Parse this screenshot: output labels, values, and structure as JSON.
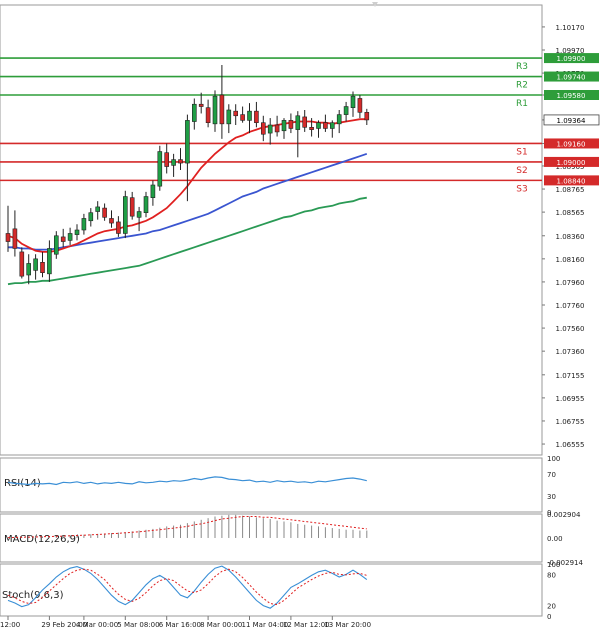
{
  "chart_data": {
    "type": "candlestick",
    "instrument_note": "",
    "price_axis": {
      "ylim": [
        1.0646,
        1.1036
      ],
      "ticks": [
        "1.10170",
        "1.09970",
        "1.09770",
        "1.09580",
        "1.09364",
        "1.09160",
        "1.08965",
        "1.08765",
        "1.08565",
        "1.08360",
        "1.08160",
        "1.07960",
        "1.07760",
        "1.07560",
        "1.07360",
        "1.07155",
        "1.06955",
        "1.06755",
        "1.06555"
      ]
    },
    "x_axis": {
      "labels": [
        "12:00",
        "29 Feb 20:00",
        "4 Mar 00:00",
        "5 Mar 08:00",
        "6 Mar 16:00",
        "8 Mar 00:00",
        "11 Mar 04:00",
        "12 Mar 12:00",
        "13 Mar 20:00"
      ],
      "label_positions_index": [
        0,
        6,
        11,
        17,
        23,
        29,
        35,
        41,
        47
      ]
    },
    "levels": [
      {
        "name": "R3",
        "value": 1.099,
        "label": "1.09900",
        "color": "#2e9d3a"
      },
      {
        "name": "R2",
        "value": 1.0974,
        "label": "1.09740",
        "color": "#2e9d3a"
      },
      {
        "name": "R1",
        "value": 1.0958,
        "label": "1.09580",
        "color": "#2e9d3a"
      },
      {
        "name": "S1",
        "value": 1.0916,
        "label": "1.09160",
        "color": "#d42a2a"
      },
      {
        "name": "S2",
        "value": 1.09,
        "label": "1.09000",
        "color": "#d42a2a"
      },
      {
        "name": "S3",
        "value": 1.0884,
        "label": "1.08840",
        "color": "#d42a2a"
      }
    ],
    "current_price": {
      "value": 1.09364,
      "label": "1.09364"
    },
    "candles": [
      {
        "o": 1.0838,
        "h": 1.0862,
        "l": 1.0822,
        "c": 1.0831
      },
      {
        "o": 1.0842,
        "h": 1.0858,
        "l": 1.0818,
        "c": 1.0825
      },
      {
        "o": 1.0822,
        "h": 1.0826,
        "l": 1.0799,
        "c": 1.0801
      },
      {
        "o": 1.0802,
        "h": 1.082,
        "l": 1.0794,
        "c": 1.0812
      },
      {
        "o": 1.0806,
        "h": 1.082,
        "l": 1.0798,
        "c": 1.0816
      },
      {
        "o": 1.0813,
        "h": 1.0822,
        "l": 1.08,
        "c": 1.0804
      },
      {
        "o": 1.0803,
        "h": 1.0832,
        "l": 1.0796,
        "c": 1.0825
      },
      {
        "o": 1.082,
        "h": 1.084,
        "l": 1.0816,
        "c": 1.0836
      },
      {
        "o": 1.0835,
        "h": 1.0842,
        "l": 1.0826,
        "c": 1.0831
      },
      {
        "o": 1.0832,
        "h": 1.0843,
        "l": 1.0828,
        "c": 1.0838
      },
      {
        "o": 1.0837,
        "h": 1.0846,
        "l": 1.0832,
        "c": 1.0841
      },
      {
        "o": 1.0841,
        "h": 1.0855,
        "l": 1.0837,
        "c": 1.0851
      },
      {
        "o": 1.0849,
        "h": 1.086,
        "l": 1.0844,
        "c": 1.0856
      },
      {
        "o": 1.0857,
        "h": 1.0866,
        "l": 1.085,
        "c": 1.0861
      },
      {
        "o": 1.086,
        "h": 1.0864,
        "l": 1.0849,
        "c": 1.0852
      },
      {
        "o": 1.0851,
        "h": 1.0858,
        "l": 1.0843,
        "c": 1.0847
      },
      {
        "o": 1.0848,
        "h": 1.0853,
        "l": 1.0835,
        "c": 1.0838
      },
      {
        "o": 1.0838,
        "h": 1.0875,
        "l": 1.0834,
        "c": 1.087
      },
      {
        "o": 1.0869,
        "h": 1.0874,
        "l": 1.085,
        "c": 1.0853
      },
      {
        "o": 1.0852,
        "h": 1.0861,
        "l": 1.084,
        "c": 1.0857
      },
      {
        "o": 1.0856,
        "h": 1.0874,
        "l": 1.0852,
        "c": 1.087
      },
      {
        "o": 1.0869,
        "h": 1.0884,
        "l": 1.0862,
        "c": 1.088
      },
      {
        "o": 1.0879,
        "h": 1.0914,
        "l": 1.0875,
        "c": 1.0909
      },
      {
        "o": 1.0908,
        "h": 1.0916,
        "l": 1.089,
        "c": 1.0896
      },
      {
        "o": 1.0897,
        "h": 1.0907,
        "l": 1.0887,
        "c": 1.0902
      },
      {
        "o": 1.0902,
        "h": 1.0912,
        "l": 1.0893,
        "c": 1.0899
      },
      {
        "o": 1.0899,
        "h": 1.0941,
        "l": 1.0866,
        "c": 1.0936
      },
      {
        "o": 1.0935,
        "h": 1.0955,
        "l": 1.0928,
        "c": 1.095
      },
      {
        "o": 1.095,
        "h": 1.096,
        "l": 1.0942,
        "c": 1.0948
      },
      {
        "o": 1.0947,
        "h": 1.0954,
        "l": 1.093,
        "c": 1.0934
      },
      {
        "o": 1.0933,
        "h": 1.0962,
        "l": 1.0926,
        "c": 1.0957
      },
      {
        "o": 1.0958,
        "h": 1.0984,
        "l": 1.092,
        "c": 1.0933
      },
      {
        "o": 1.0933,
        "h": 1.095,
        "l": 1.0925,
        "c": 1.0945
      },
      {
        "o": 1.0944,
        "h": 1.095,
        "l": 1.0932,
        "c": 1.094
      },
      {
        "o": 1.0941,
        "h": 1.0948,
        "l": 1.0934,
        "c": 1.0936
      },
      {
        "o": 1.0936,
        "h": 1.0951,
        "l": 1.0925,
        "c": 1.0944
      },
      {
        "o": 1.0944,
        "h": 1.0952,
        "l": 1.093,
        "c": 1.0934
      },
      {
        "o": 1.0934,
        "h": 1.094,
        "l": 1.0918,
        "c": 1.0924
      },
      {
        "o": 1.0925,
        "h": 1.0938,
        "l": 1.0915,
        "c": 1.0932
      },
      {
        "o": 1.0932,
        "h": 1.094,
        "l": 1.0922,
        "c": 1.0926
      },
      {
        "o": 1.0927,
        "h": 1.0938,
        "l": 1.092,
        "c": 1.0936
      },
      {
        "o": 1.0936,
        "h": 1.0942,
        "l": 1.0925,
        "c": 1.0929
      },
      {
        "o": 1.0928,
        "h": 1.0944,
        "l": 1.0904,
        "c": 1.094
      },
      {
        "o": 1.0939,
        "h": 1.0945,
        "l": 1.0926,
        "c": 1.093
      },
      {
        "o": 1.093,
        "h": 1.0938,
        "l": 1.0922,
        "c": 1.0928
      },
      {
        "o": 1.0929,
        "h": 1.0936,
        "l": 1.0921,
        "c": 1.0934
      },
      {
        "o": 1.0934,
        "h": 1.0941,
        "l": 1.0926,
        "c": 1.0929
      },
      {
        "o": 1.0929,
        "h": 1.0936,
        "l": 1.0921,
        "c": 1.0934
      },
      {
        "o": 1.0933,
        "h": 1.0945,
        "l": 1.0925,
        "c": 1.0941
      },
      {
        "o": 1.0941,
        "h": 1.0952,
        "l": 1.0935,
        "c": 1.0948
      },
      {
        "o": 1.0947,
        "h": 1.0961,
        "l": 1.0939,
        "c": 1.0957
      },
      {
        "o": 1.0955,
        "h": 1.0958,
        "l": 1.0938,
        "c": 1.0943
      },
      {
        "o": 1.0943,
        "h": 1.0946,
        "l": 1.0932,
        "c": 1.09364
      }
    ],
    "ma_fast": {
      "color": "#e02020",
      "values": [
        1.0836,
        1.0834,
        1.0829,
        1.0826,
        1.0823,
        1.0822,
        1.0822,
        1.0823,
        1.0825,
        1.0827,
        1.0829,
        1.0832,
        1.0835,
        1.0838,
        1.084,
        1.0841,
        1.0842,
        1.0844,
        1.0845,
        1.0847,
        1.0849,
        1.0852,
        1.0856,
        1.086,
        1.0866,
        1.0872,
        1.0879,
        1.0887,
        1.0895,
        1.0901,
        1.0907,
        1.0912,
        1.0917,
        1.0921,
        1.0923,
        1.0926,
        1.0928,
        1.093,
        1.0931,
        1.0932,
        1.0933,
        1.0934,
        1.0935,
        1.0935,
        1.0935,
        1.0934,
        1.0934,
        1.0933,
        1.0934,
        1.0935,
        1.0936,
        1.0937,
        1.0937
      ]
    },
    "ma_mid": {
      "color": "#3a55d0",
      "values": [
        1.0826,
        1.0826,
        1.0825,
        1.0825,
        1.0824,
        1.0824,
        1.0824,
        1.0825,
        1.0826,
        1.0827,
        1.0828,
        1.0829,
        1.083,
        1.0831,
        1.0832,
        1.0833,
        1.0834,
        1.0835,
        1.0836,
        1.0837,
        1.0838,
        1.084,
        1.0841,
        1.0843,
        1.0845,
        1.0847,
        1.0849,
        1.0851,
        1.0853,
        1.0855,
        1.0858,
        1.0861,
        1.0864,
        1.0867,
        1.087,
        1.0872,
        1.0874,
        1.0877,
        1.0879,
        1.0881,
        1.0883,
        1.0885,
        1.0887,
        1.0889,
        1.0891,
        1.0893,
        1.0895,
        1.0897,
        1.0899,
        1.0901,
        1.0903,
        1.0905,
        1.0907
      ]
    },
    "ma_slow": {
      "color": "#2a9a55",
      "values": [
        1.0794,
        1.0795,
        1.0795,
        1.0796,
        1.0796,
        1.0797,
        1.0797,
        1.0798,
        1.0799,
        1.08,
        1.0801,
        1.0802,
        1.0803,
        1.0804,
        1.0805,
        1.0806,
        1.0807,
        1.0808,
        1.0809,
        1.081,
        1.0812,
        1.0814,
        1.0816,
        1.0818,
        1.082,
        1.0822,
        1.0824,
        1.0826,
        1.0828,
        1.083,
        1.0832,
        1.0834,
        1.0836,
        1.0838,
        1.084,
        1.0842,
        1.0844,
        1.0846,
        1.0848,
        1.085,
        1.0852,
        1.0853,
        1.0855,
        1.0857,
        1.0858,
        1.086,
        1.0861,
        1.0862,
        1.0864,
        1.0865,
        1.0866,
        1.0868,
        1.0869
      ]
    },
    "rsi": {
      "label": "RSI(14)",
      "ticks": [
        "100",
        "70",
        "30",
        "0"
      ],
      "ylim": [
        0,
        100
      ],
      "color": "#3a8fd6",
      "values": [
        55,
        53,
        52,
        51,
        53,
        52,
        53,
        51,
        55,
        54,
        56,
        53,
        55,
        52,
        54,
        53,
        55,
        53,
        52,
        56,
        54,
        55,
        57,
        56,
        58,
        57,
        59,
        62,
        60,
        63,
        65,
        64,
        61,
        60,
        58,
        59,
        56,
        57,
        55,
        58,
        56,
        57,
        55,
        56,
        54,
        57,
        56,
        58,
        60,
        62,
        63,
        61,
        58
      ]
    },
    "macd": {
      "label": "MACD(12,26,9)",
      "ticks": [
        "0.002904",
        "0.00",
        "-0.002914"
      ],
      "ylim": [
        -0.002914,
        0.002904
      ],
      "hist_color": "#888888",
      "signal_color": "#e02020",
      "hist": [
        5e-05,
        8e-05,
        0.0001,
        0.00012,
        0.00015,
        0.00018,
        0.0002,
        0.00024,
        0.00028,
        0.00032,
        0.00036,
        0.0004,
        0.00045,
        0.0005,
        0.00055,
        0.0006,
        0.00065,
        0.0007,
        0.0008,
        0.0009,
        0.001,
        0.0011,
        0.00125,
        0.0014,
        0.0015,
        0.0016,
        0.0018,
        0.002,
        0.0022,
        0.0024,
        0.0026,
        0.0027,
        0.0028,
        0.0028,
        0.0027,
        0.0026,
        0.0025,
        0.0024,
        0.0023,
        0.0021,
        0.002,
        0.0019,
        0.0017,
        0.0016,
        0.0015,
        0.0014,
        0.0013,
        0.0012,
        0.0011,
        0.001,
        0.001,
        0.0009,
        0.0009
      ],
      "signal": [
        4e-05,
        6e-05,
        8e-05,
        0.0001,
        0.00012,
        0.00015,
        0.00017,
        0.0002,
        0.00023,
        0.00026,
        0.0003,
        0.00034,
        0.00038,
        0.00042,
        0.00047,
        0.00052,
        0.00057,
        0.00062,
        0.00068,
        0.00075,
        0.00083,
        0.00092,
        0.001,
        0.0011,
        0.0012,
        0.0013,
        0.0014,
        0.0016,
        0.0017,
        0.0019,
        0.0021,
        0.0023,
        0.0024,
        0.0025,
        0.0026,
        0.0026,
        0.0026,
        0.0025,
        0.0025,
        0.0024,
        0.0023,
        0.0022,
        0.0021,
        0.002,
        0.0019,
        0.0018,
        0.0017,
        0.0016,
        0.0015,
        0.0014,
        0.0013,
        0.0012,
        0.0011
      ]
    },
    "stoch": {
      "label": "Stoch(9,6,3)",
      "ticks": [
        "100",
        "80",
        "20",
        "0"
      ],
      "ylim": [
        0,
        100
      ],
      "k_color": "#3a8fd6",
      "d_color": "#e02020",
      "k": [
        30,
        25,
        18,
        22,
        35,
        50,
        62,
        75,
        85,
        92,
        95,
        90,
        82,
        70,
        55,
        40,
        28,
        22,
        30,
        45,
        60,
        72,
        78,
        70,
        55,
        40,
        35,
        48,
        65,
        80,
        92,
        96,
        88,
        75,
        60,
        45,
        30,
        20,
        15,
        25,
        40,
        55,
        62,
        70,
        78,
        85,
        88,
        82,
        75,
        80,
        88,
        80,
        70
      ],
      "d": [
        40,
        35,
        28,
        24,
        26,
        36,
        48,
        60,
        72,
        82,
        88,
        90,
        88,
        80,
        70,
        55,
        42,
        32,
        28,
        34,
        45,
        58,
        68,
        72,
        68,
        58,
        48,
        45,
        50,
        62,
        76,
        86,
        90,
        85,
        74,
        60,
        46,
        34,
        24,
        22,
        30,
        42,
        54,
        62,
        70,
        77,
        82,
        84,
        80,
        79,
        81,
        82,
        78
      ]
    }
  }
}
